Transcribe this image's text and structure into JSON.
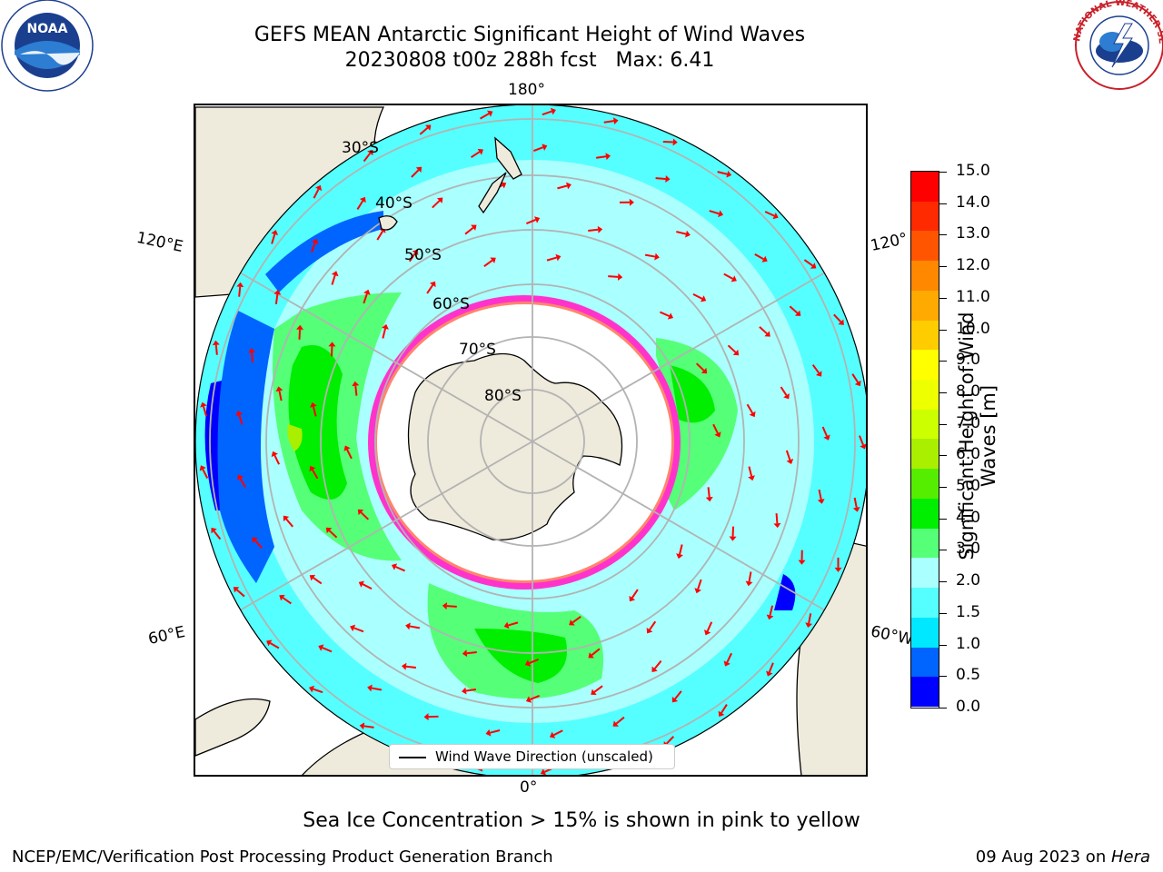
{
  "title": {
    "line1": "GEFS MEAN Antarctic Significant Height of Wind Waves",
    "line2": "20230808 t00z 288h fcst   Max: 6.41"
  },
  "map": {
    "projection": "south-polar-stereographic",
    "longitude_labels": {
      "top": "180°",
      "bottom": "0°",
      "upper_left": "120°E",
      "upper_right": "120°",
      "lower_left": "60°E",
      "lower_right": "60°W"
    },
    "latitude_labels": [
      "30°S",
      "40°S",
      "50°S",
      "60°S",
      "70°S",
      "80°S"
    ],
    "land_color": "#efebdc",
    "ocean_no_data_color": "#ffffff",
    "arrow_color": "#ff0000",
    "legend": {
      "label": "Wind Wave Direction (unscaled)"
    }
  },
  "colorbar": {
    "label": "Significant Height of Wind Waves [m]",
    "ticks": [
      "0.0",
      "0.5",
      "1.0",
      "1.5",
      "2.0",
      "3.0",
      "4.0",
      "5.0",
      "6.0",
      "7.0",
      "8.0",
      "9.0",
      "10.0",
      "11.0",
      "12.0",
      "13.0",
      "14.0",
      "15.0"
    ],
    "colors": [
      "#0000ff",
      "#0064ff",
      "#00e8ff",
      "#55ffff",
      "#aaffff",
      "#55ff77",
      "#00ee00",
      "#55ee00",
      "#aaee00",
      "#ccff00",
      "#eeff00",
      "#ffff00",
      "#ffcc00",
      "#ffaa00",
      "#ff8800",
      "#ff5500",
      "#ff2a00",
      "#ff0000"
    ]
  },
  "footnote": "Sea Ice Concentration > 15% is shown in pink to yellow",
  "footer": {
    "left": "NCEP/EMC/Verification Post Processing Product Generation Branch",
    "right_date": "09 Aug 2023 on ",
    "right_host": "Hera"
  },
  "logos": {
    "noaa": "NOAA",
    "nws": "NATIONAL WEATHER SERVICE"
  }
}
